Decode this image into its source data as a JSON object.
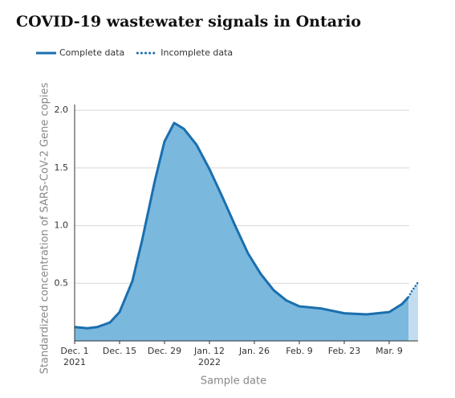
{
  "chart_data": {
    "type": "area",
    "title": "COVID-19 wastewater signals in Ontario",
    "x_label": "Sample date",
    "y_label": "Standardized concentration of SARS-CoV-2 Gene copies",
    "x": [
      "2021-12-01",
      "2021-12-05",
      "2021-12-08",
      "2021-12-12",
      "2021-12-15",
      "2021-12-19",
      "2021-12-22",
      "2021-12-26",
      "2021-12-29",
      "2022-01-01",
      "2022-01-04",
      "2022-01-08",
      "2022-01-12",
      "2022-01-16",
      "2022-01-20",
      "2022-01-24",
      "2022-01-28",
      "2022-02-01",
      "2022-02-05",
      "2022-02-09",
      "2022-02-16",
      "2022-02-23",
      "2022-03-02",
      "2022-03-09",
      "2022-03-13",
      "2022-03-15",
      "2022-03-16",
      "2022-03-18"
    ],
    "series": [
      {
        "name": "Complete data",
        "color": "#1a6fae",
        "fill": "#7ab8de",
        "line_style": "solid",
        "values": [
          0.12,
          0.11,
          0.12,
          0.16,
          0.25,
          0.52,
          0.87,
          1.39,
          1.73,
          1.89,
          1.84,
          1.7,
          1.49,
          1.25,
          1.0,
          0.76,
          0.58,
          0.44,
          0.35,
          0.3,
          0.28,
          0.24,
          0.23,
          0.25,
          0.32,
          0.38,
          null,
          null
        ]
      },
      {
        "name": "Incomplete data",
        "color": "#1a6fae",
        "fill": "#c3ddef",
        "line_style": "dotted",
        "values": [
          null,
          null,
          null,
          null,
          null,
          null,
          null,
          null,
          null,
          null,
          null,
          null,
          null,
          null,
          null,
          null,
          null,
          null,
          null,
          null,
          null,
          null,
          null,
          null,
          null,
          0.38,
          0.43,
          0.51
        ]
      }
    ],
    "xlim": [
      "2021-12-01",
      "2022-03-18"
    ],
    "xticks": [
      {
        "value": "2021-12-01",
        "label": "Dec. 1",
        "sublabel": "2021"
      },
      {
        "value": "2021-12-15",
        "label": "Dec. 15"
      },
      {
        "value": "2021-12-29",
        "label": "Dec. 29"
      },
      {
        "value": "2022-01-12",
        "label": "Jan. 12",
        "sublabel": "2022"
      },
      {
        "value": "2022-01-26",
        "label": "Jan. 26"
      },
      {
        "value": "2022-02-09",
        "label": "Feb. 9"
      },
      {
        "value": "2022-02-23",
        "label": "Feb. 23"
      },
      {
        "value": "2022-03-09",
        "label": "Mar. 9"
      }
    ],
    "ylim": [
      0,
      2.05
    ],
    "yticks": [
      0.5,
      {
        "value": 1,
        "label": "1.0"
      },
      1.5,
      {
        "value": 2,
        "label": "2.0"
      }
    ],
    "grid": true
  }
}
